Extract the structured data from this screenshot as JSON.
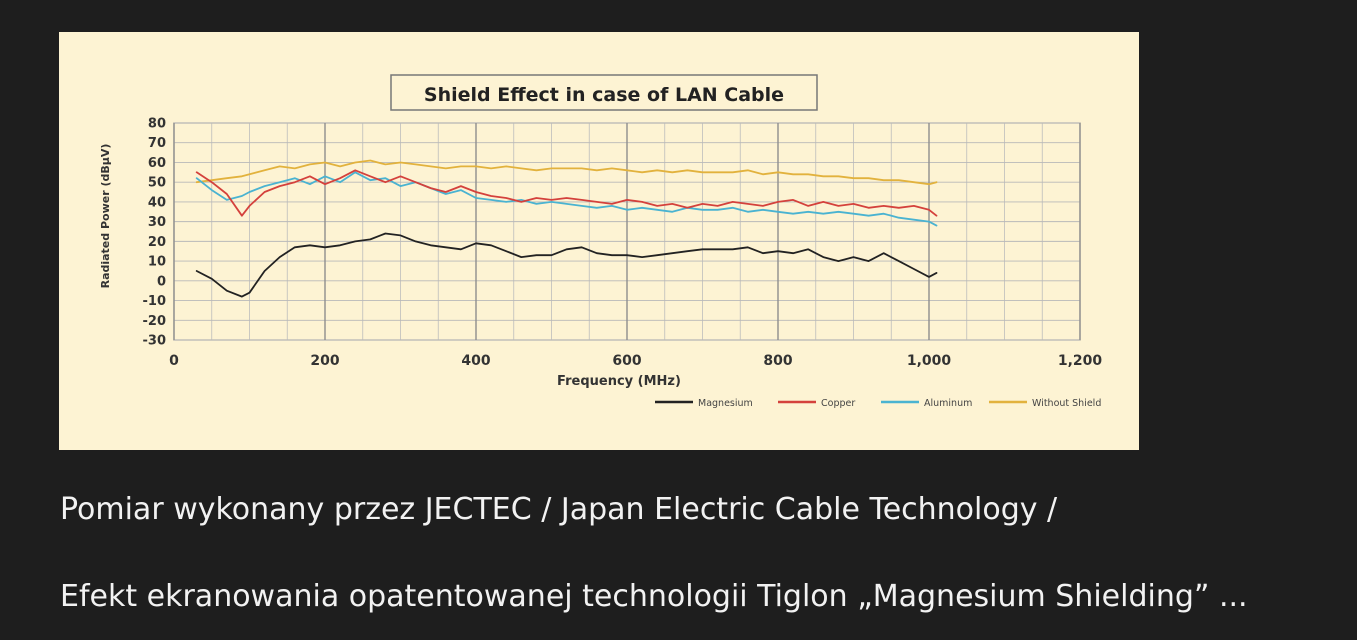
{
  "captions": {
    "line1": "Pomiar wykonany przez JECTEC / Japan Electric Cable Technology /",
    "line2": "Efekt ekranowania opatentowanej technologii Tiglon „Magnesium Shielding” ..."
  },
  "chart_data": {
    "type": "line",
    "title": "Shield Effect in case of LAN Cable",
    "xlabel": "Frequency (MHz)",
    "ylabel": "Radiated Power (dBµV)",
    "xlim": [
      0,
      1200
    ],
    "ylim": [
      -30,
      80
    ],
    "x_ticks": [
      0,
      200,
      400,
      600,
      800,
      1000,
      1200
    ],
    "x_tick_labels": [
      "0",
      "200",
      "400",
      "600",
      "800",
      "1,000",
      "1,200"
    ],
    "y_ticks": [
      80,
      70,
      60,
      50,
      40,
      30,
      20,
      10,
      0,
      -10,
      -20,
      -30
    ],
    "y_tick_labels": [
      "80",
      "70",
      "60",
      "50",
      "40",
      "30",
      "20",
      "10",
      "0",
      "-10",
      "-20",
      "-30"
    ],
    "grid": true,
    "legend_position": "bottom-right",
    "x": [
      30,
      50,
      70,
      90,
      100,
      120,
      140,
      160,
      180,
      200,
      220,
      240,
      260,
      280,
      300,
      320,
      340,
      360,
      380,
      400,
      420,
      440,
      460,
      480,
      500,
      520,
      540,
      560,
      580,
      600,
      620,
      640,
      660,
      680,
      700,
      720,
      740,
      760,
      780,
      800,
      820,
      840,
      860,
      880,
      900,
      920,
      940,
      960,
      980,
      1000,
      1010
    ],
    "series": [
      {
        "name": "Magnesium",
        "color": "#222222",
        "values": [
          5,
          1,
          -5,
          -8,
          -6,
          5,
          12,
          17,
          18,
          17,
          18,
          20,
          21,
          24,
          23,
          20,
          18,
          17,
          16,
          19,
          18,
          15,
          12,
          13,
          13,
          16,
          17,
          14,
          13,
          13,
          12,
          13,
          14,
          15,
          16,
          16,
          16,
          17,
          14,
          15,
          14,
          16,
          12,
          10,
          12,
          10,
          14,
          10,
          6,
          2,
          4
        ]
      },
      {
        "name": "Copper",
        "color": "#d4413c",
        "values": [
          55,
          50,
          44,
          33,
          38,
          45,
          48,
          50,
          53,
          49,
          52,
          56,
          53,
          50,
          53,
          50,
          47,
          45,
          48,
          45,
          43,
          42,
          40,
          42,
          41,
          42,
          41,
          40,
          39,
          41,
          40,
          38,
          39,
          37,
          39,
          38,
          40,
          39,
          38,
          40,
          41,
          38,
          40,
          38,
          39,
          37,
          38,
          37,
          38,
          36,
          33
        ]
      },
      {
        "name": "Aluminum",
        "color": "#4ab3d1",
        "values": [
          52,
          46,
          41,
          43,
          45,
          48,
          50,
          52,
          49,
          53,
          50,
          55,
          51,
          52,
          48,
          50,
          47,
          44,
          46,
          42,
          41,
          40,
          41,
          39,
          40,
          39,
          38,
          37,
          38,
          36,
          37,
          36,
          35,
          37,
          36,
          36,
          37,
          35,
          36,
          35,
          34,
          35,
          34,
          35,
          34,
          33,
          34,
          32,
          31,
          30,
          28
        ]
      },
      {
        "name": "Without Shield",
        "color": "#e2b23d",
        "values": [
          50,
          51,
          52,
          53,
          54,
          56,
          58,
          57,
          59,
          60,
          58,
          60,
          61,
          59,
          60,
          59,
          58,
          57,
          58,
          58,
          57,
          58,
          57,
          56,
          57,
          57,
          57,
          56,
          57,
          56,
          55,
          56,
          55,
          56,
          55,
          55,
          55,
          56,
          54,
          55,
          54,
          54,
          53,
          53,
          52,
          52,
          51,
          51,
          50,
          49,
          50
        ]
      }
    ]
  }
}
